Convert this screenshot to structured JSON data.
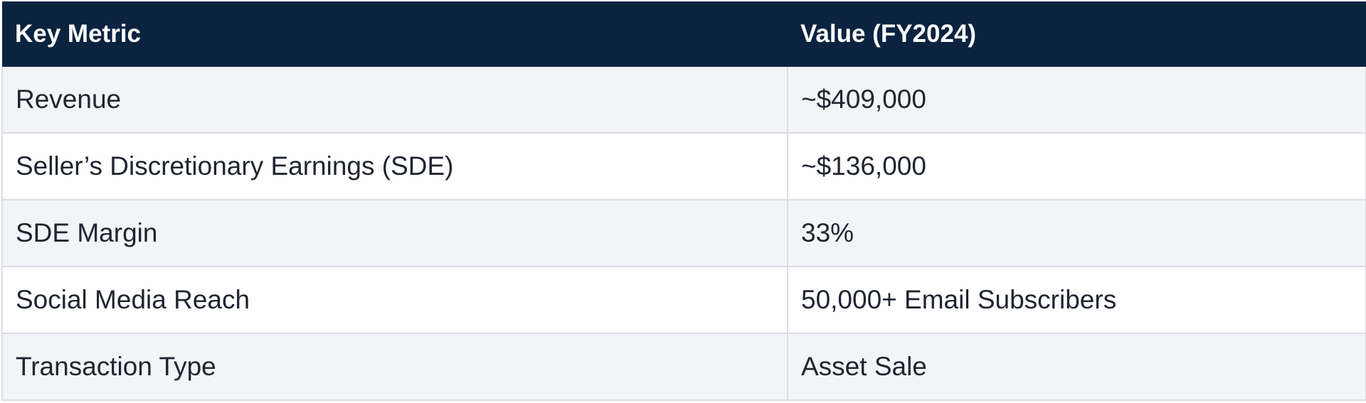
{
  "table": {
    "headers": [
      "Key Metric",
      "Value (FY2024)"
    ],
    "rows": [
      [
        "Revenue",
        "~$409,000"
      ],
      [
        "Seller’s Discretionary Earnings (SDE)",
        "~$136,000"
      ],
      [
        "SDE Margin",
        "33%"
      ],
      [
        "Social Media Reach",
        "50,000+ Email Subscribers"
      ],
      [
        "Transaction Type",
        "Asset Sale"
      ]
    ]
  },
  "colors": {
    "header_bg": "#0c2340",
    "header_text": "#ffffff",
    "row_alt_bg": "#f3f4f8",
    "row_bg": "#ffffff",
    "border": "#dcdde2"
  }
}
